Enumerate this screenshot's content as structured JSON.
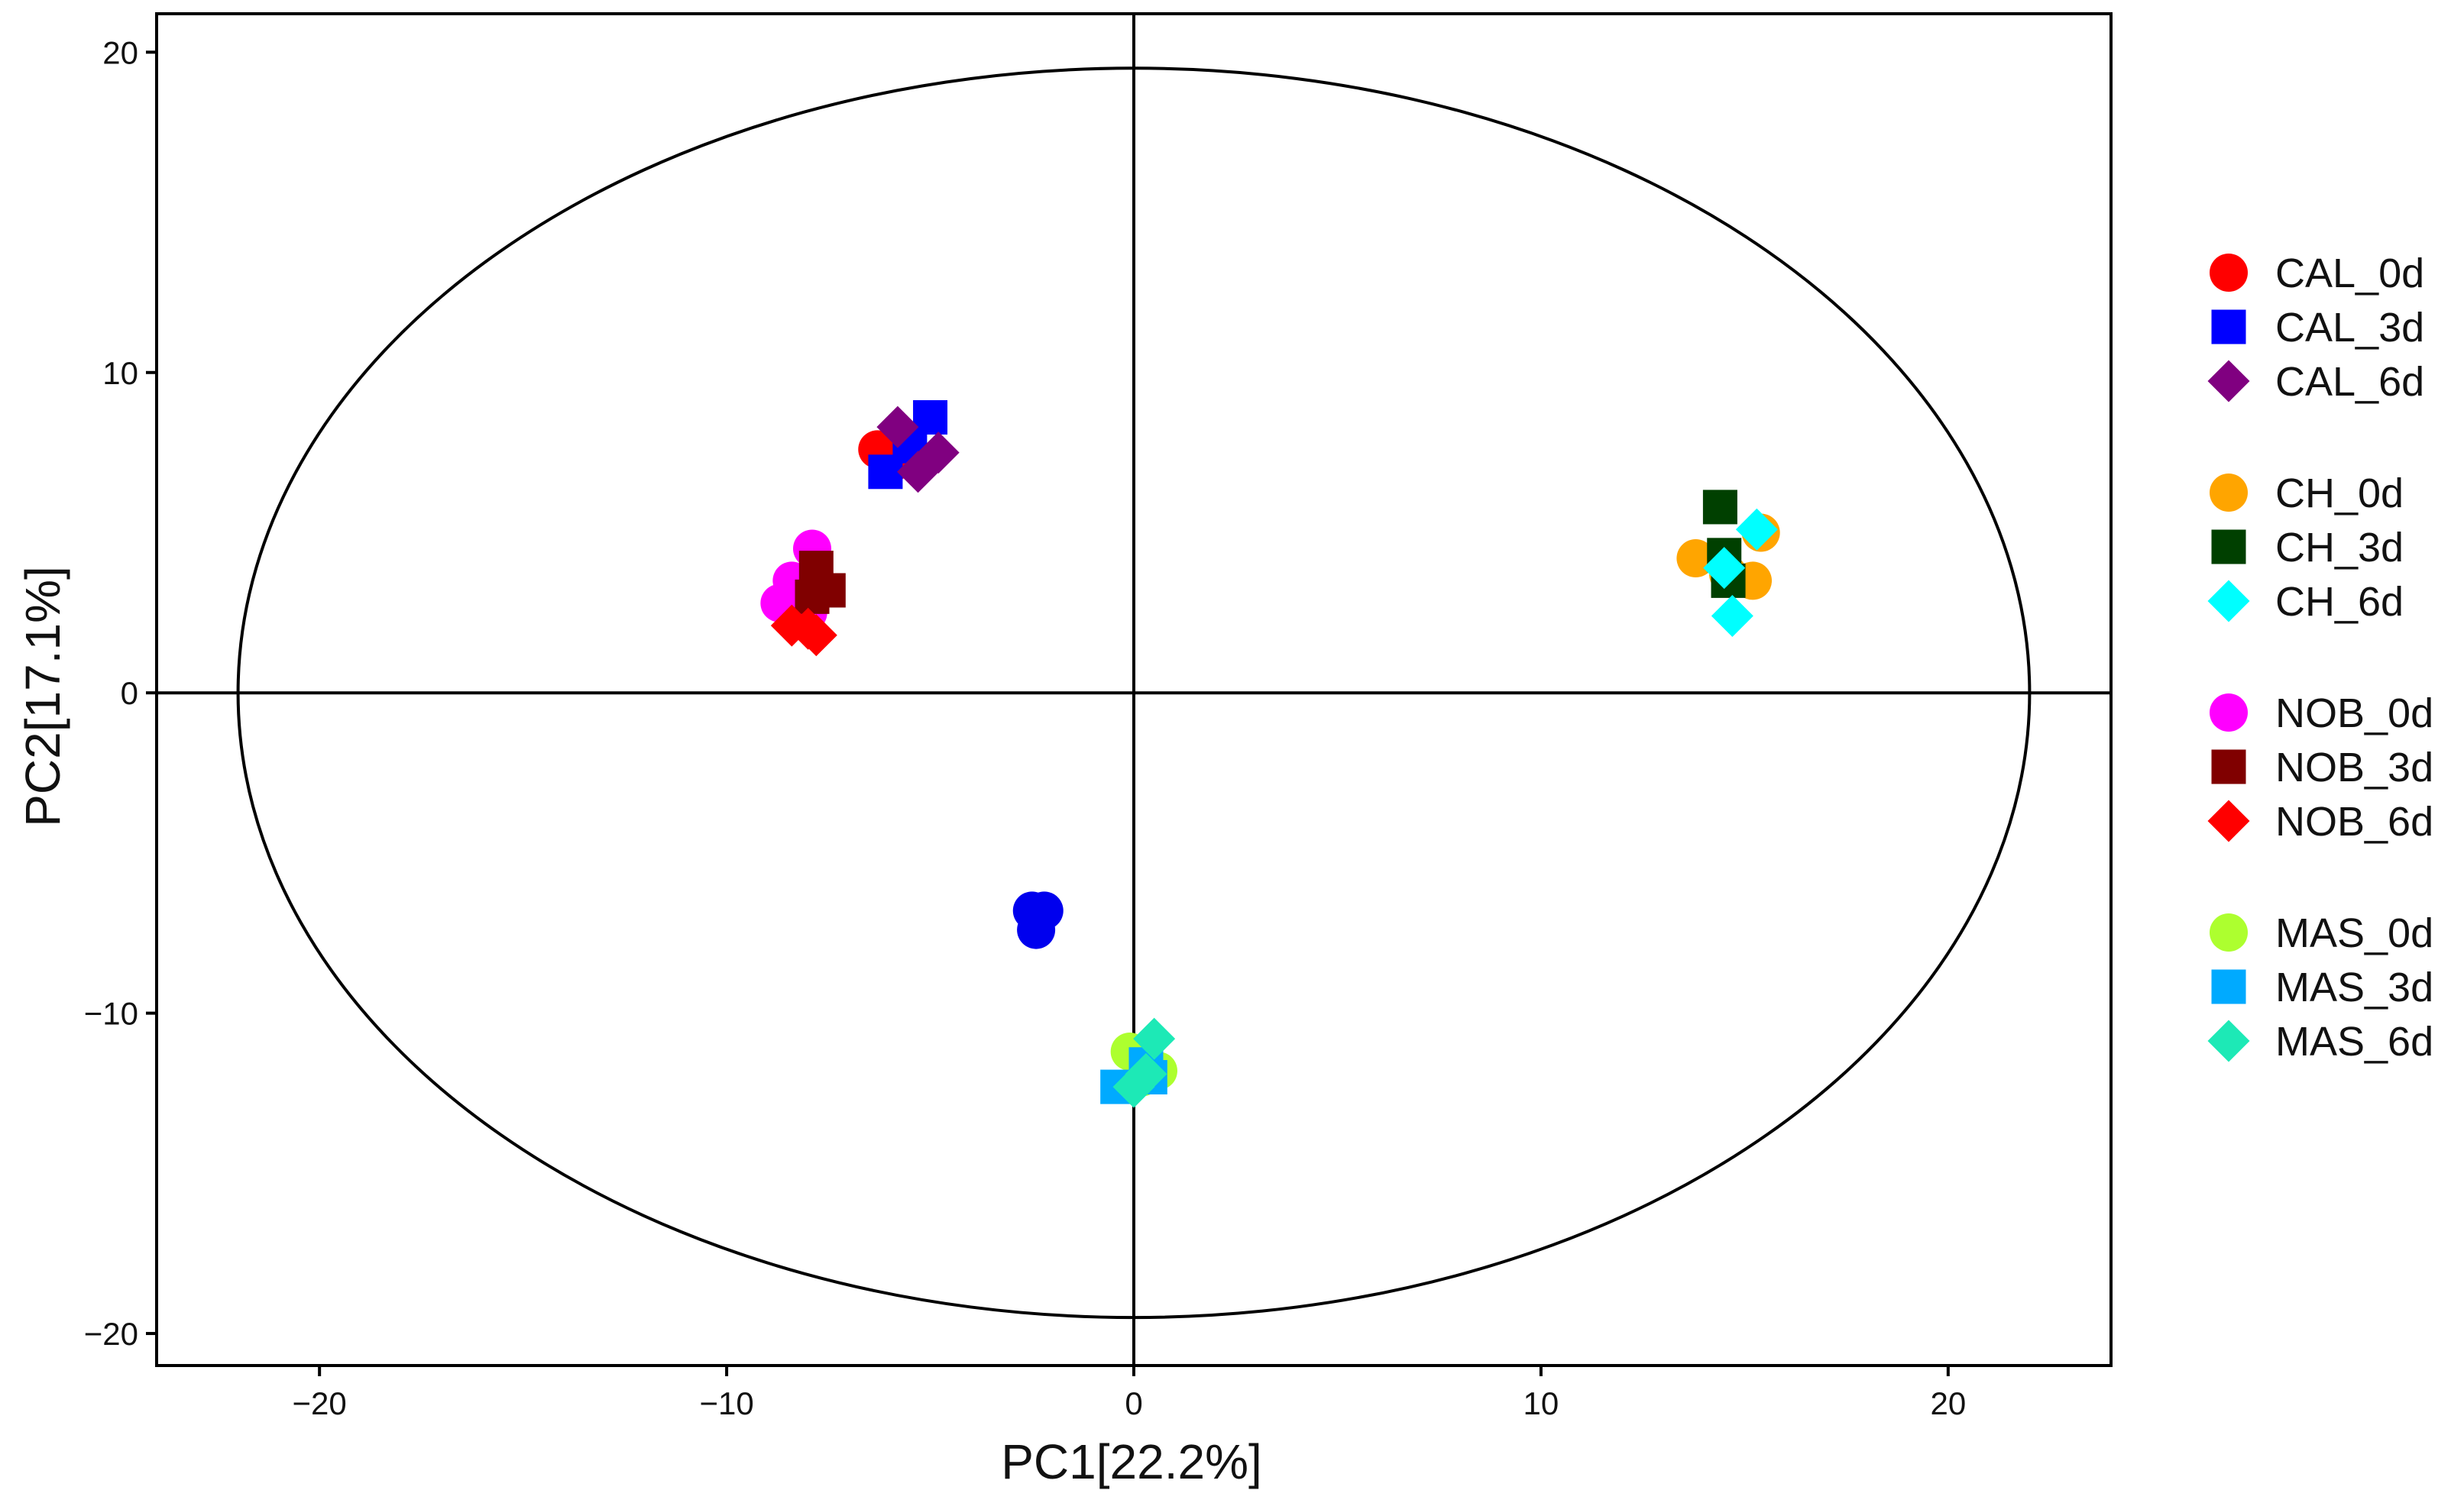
{
  "chart_data": {
    "type": "scatter",
    "title": "",
    "xlabel": "PC1[22.2%]",
    "ylabel": "PC2[17.1%]",
    "xlim": [
      -24,
      24
    ],
    "ylim": [
      -21,
      21.2
    ],
    "xticks": [
      -20,
      -10,
      0,
      10,
      20
    ],
    "yticks": [
      -20,
      -10,
      0,
      10,
      20
    ],
    "xtick_labels": [
      "−20",
      "−10",
      "0",
      "10",
      "20"
    ],
    "ytick_labels": [
      "−20",
      "−10",
      "0",
      "10",
      "20"
    ],
    "reference_lines": {
      "x": 0,
      "y": 0
    },
    "confidence_ellipse": {
      "center": [
        0,
        0
      ],
      "semi_axis_x": 22,
      "semi_axis_y": 19.5
    },
    "grid": false,
    "legend_position": "right",
    "series": [
      {
        "name": "CAL_0d",
        "marker": "circle",
        "color": "#ff0000",
        "points": [
          [
            -6.3,
            7.6
          ],
          [
            -5.9,
            7.2
          ]
        ]
      },
      {
        "name": "CAL_3d",
        "marker": "square",
        "color": "#0000ff",
        "points": [
          [
            -5.0,
            8.6
          ],
          [
            -5.5,
            7.7
          ],
          [
            -6.1,
            6.9
          ]
        ]
      },
      {
        "name": "CAL_6d",
        "marker": "diamond",
        "color": "#800080",
        "points": [
          [
            -5.8,
            8.3
          ],
          [
            -4.8,
            7.5
          ],
          [
            -5.3,
            6.9
          ]
        ]
      },
      {
        "name": "CH_0d",
        "marker": "circle",
        "color": "#ffa500",
        "points": [
          [
            13.8,
            4.2
          ],
          [
            15.4,
            5.0
          ],
          [
            15.2,
            3.5
          ],
          [
            14.6,
            3.7
          ]
        ]
      },
      {
        "name": "CH_3d",
        "marker": "square",
        "color": "#004000",
        "points": [
          [
            14.4,
            5.8
          ],
          [
            14.5,
            4.3
          ],
          [
            14.6,
            3.5
          ]
        ]
      },
      {
        "name": "CH_6d",
        "marker": "diamond",
        "color": "#00ffff",
        "points": [
          [
            15.3,
            5.1
          ],
          [
            14.5,
            3.9
          ],
          [
            14.7,
            2.4
          ]
        ]
      },
      {
        "name": "NOB_0d",
        "marker": "circle",
        "color": "#ff00ff",
        "points": [
          [
            -7.9,
            4.5
          ],
          [
            -8.4,
            3.5
          ],
          [
            -8.7,
            2.8
          ],
          [
            -8.0,
            2.5
          ]
        ]
      },
      {
        "name": "NOB_3d",
        "marker": "square",
        "color": "#800000",
        "points": [
          [
            -7.8,
            3.9
          ],
          [
            -7.5,
            3.2
          ],
          [
            -7.9,
            3.0
          ]
        ]
      },
      {
        "name": "NOB_6d",
        "marker": "diamond",
        "color": "#ff0000",
        "points": [
          [
            -8.4,
            2.1
          ],
          [
            -8.0,
            2.0
          ],
          [
            -7.8,
            1.8
          ]
        ]
      },
      {
        "name": "MAS_0d",
        "marker": "circle",
        "color": "#adff2f",
        "points": [
          [
            -0.1,
            -11.2
          ],
          [
            0.6,
            -11.8
          ],
          [
            0.2,
            -12.0
          ]
        ]
      },
      {
        "name": "MAS_3d",
        "marker": "square",
        "color": "#00aaff",
        "points": [
          [
            -0.4,
            -12.3
          ],
          [
            0.3,
            -11.6
          ],
          [
            0.4,
            -12.0
          ]
        ]
      },
      {
        "name": "MAS_6d",
        "marker": "diamond",
        "color": "#1de9b6",
        "points": [
          [
            0.5,
            -10.8
          ],
          [
            0.3,
            -11.9
          ],
          [
            0.0,
            -12.3
          ]
        ]
      },
      {
        "name": "",
        "marker": "circle",
        "color": "#0000ee",
        "points": [
          [
            -2.5,
            -6.8
          ],
          [
            -2.2,
            -6.8
          ],
          [
            -2.4,
            -7.4
          ]
        ]
      }
    ],
    "legend_groups": [
      [
        "CAL_0d",
        "CAL_3d",
        "CAL_6d"
      ],
      [
        "CH_0d",
        "CH_3d",
        "CH_6d"
      ],
      [
        "NOB_0d",
        "NOB_3d",
        "NOB_6d"
      ],
      [
        "MAS_0d",
        "MAS_3d",
        "MAS_6d"
      ]
    ]
  }
}
